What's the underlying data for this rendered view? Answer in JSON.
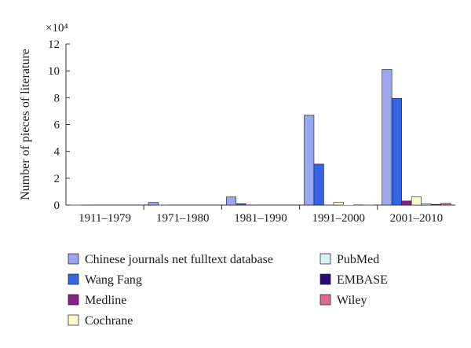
{
  "chart_data": {
    "type": "bar",
    "title": "",
    "xlabel": "",
    "ylabel": "Number of pieces of literature",
    "y_multiplier_label": "×10⁴",
    "ylim": [
      0,
      12
    ],
    "yticks": [
      0,
      2,
      4,
      6,
      8,
      10,
      12
    ],
    "grid": false,
    "legend_position": "bottom",
    "categories": [
      "1911–1979",
      "1971–1980",
      "1981–1990",
      "1991–2000",
      "2001–2010"
    ],
    "series": [
      {
        "name": "Chinese journals net fulltext database",
        "color": "#9aa6ee",
        "values": [
          0.02,
          0.2,
          0.6,
          6.7,
          10.1
        ]
      },
      {
        "name": "Wang Fang",
        "color": "#3565e6",
        "values": [
          0.01,
          0.03,
          0.1,
          3.05,
          7.95
        ]
      },
      {
        "name": "Medline",
        "color": "#8b1f8b",
        "values": [
          0.0,
          0.0,
          0.02,
          0.03,
          0.3
        ]
      },
      {
        "name": "Cochrane",
        "color": "#fbfbc6",
        "values": [
          0.0,
          0.0,
          0.0,
          0.2,
          0.6
        ]
      },
      {
        "name": "PubMed",
        "color": "#d8f4f2",
        "values": [
          0.0,
          0.0,
          0.0,
          0.03,
          0.08
        ]
      },
      {
        "name": "EMBASE",
        "color": "#2b0a7a",
        "values": [
          0.0,
          0.0,
          0.0,
          0.02,
          0.05
        ]
      },
      {
        "name": "Wiley",
        "color": "#e06a8f",
        "values": [
          0.0,
          0.0,
          0.0,
          0.02,
          0.12
        ]
      }
    ]
  }
}
